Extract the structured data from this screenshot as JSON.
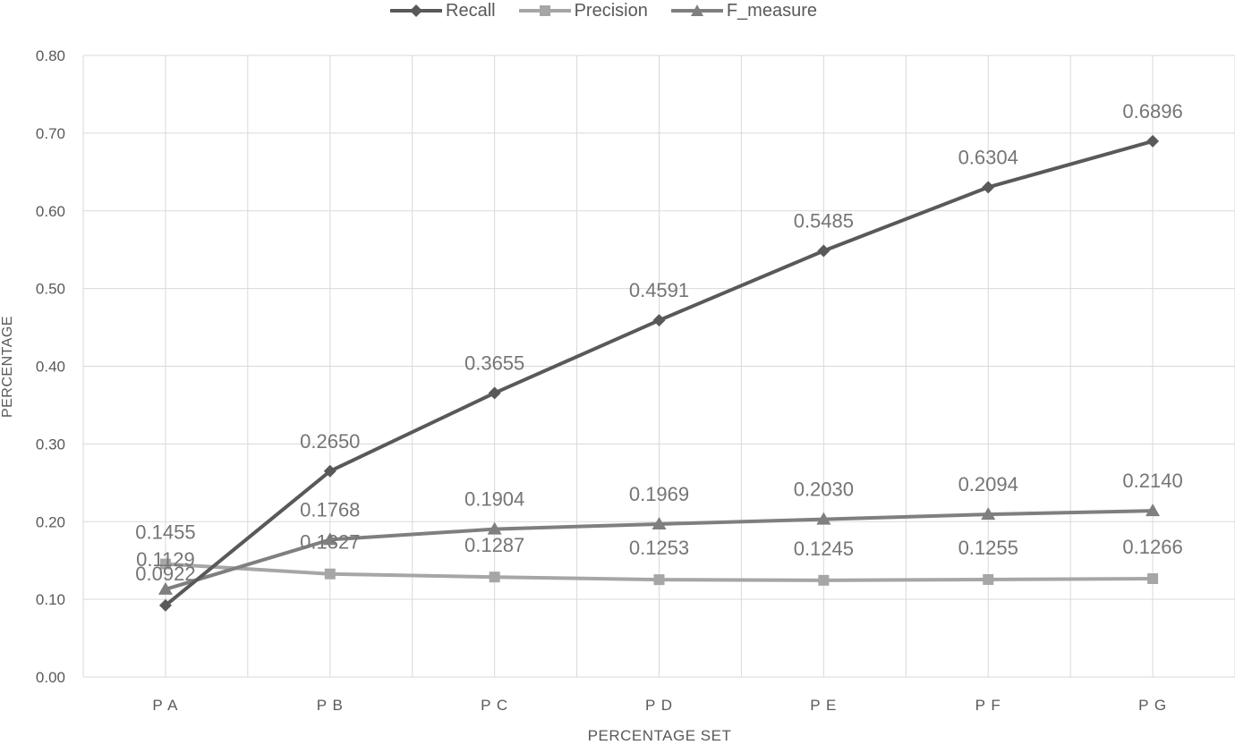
{
  "chart_data": {
    "type": "line",
    "title": "",
    "xlabel": "PERCENTAGE SET",
    "ylabel": "PERCENTAGE",
    "categories": [
      "P A",
      "P B",
      "P C",
      "P D",
      "P E",
      "P F",
      "P G"
    ],
    "ylim": [
      0,
      0.8
    ],
    "yticks": [
      "0.00",
      "0.10",
      "0.20",
      "0.30",
      "0.40",
      "0.50",
      "0.60",
      "0.70",
      "0.80"
    ],
    "grid": true,
    "legend_position": "top",
    "series": [
      {
        "name": "Recall",
        "marker": "diamond",
        "color": "#595959",
        "values": [
          0.0922,
          0.265,
          0.3655,
          0.4591,
          0.5485,
          0.6304,
          0.6896
        ],
        "labels": [
          "0.0922",
          "0.2650",
          "0.3655",
          "0.4591",
          "0.5485",
          "0.6304",
          "0.6896"
        ]
      },
      {
        "name": "Precision",
        "marker": "square",
        "color": "#a6a6a6",
        "values": [
          0.1455,
          0.1327,
          0.1287,
          0.1253,
          0.1245,
          0.1255,
          0.1266
        ],
        "labels": [
          "0.1455",
          "0.1327",
          "0.1287",
          "0.1253",
          "0.1245",
          "0.1255",
          "0.1266"
        ]
      },
      {
        "name": "F_measure",
        "marker": "triangle",
        "color": "#7f7f7f",
        "values": [
          0.1129,
          0.1768,
          0.1904,
          0.1969,
          0.203,
          0.2094,
          0.214
        ],
        "labels": [
          "0.1129",
          "0.1768",
          "0.1904",
          "0.1969",
          "0.2030",
          "0.2094",
          "0.2140"
        ]
      }
    ]
  }
}
